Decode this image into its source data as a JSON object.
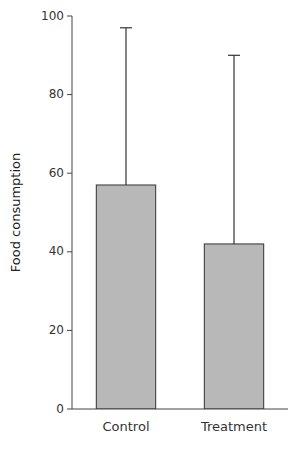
{
  "chart_data": {
    "type": "bar",
    "ylabel": "Food consumption",
    "categories": [
      "Control",
      "Treatment"
    ],
    "values": [
      57,
      42
    ],
    "errors": [
      40,
      48
    ],
    "color": "#b8b8b8",
    "ylim": [
      0,
      100
    ],
    "yticks": [
      0,
      20,
      40,
      60,
      80,
      100
    ],
    "grid": false
  }
}
